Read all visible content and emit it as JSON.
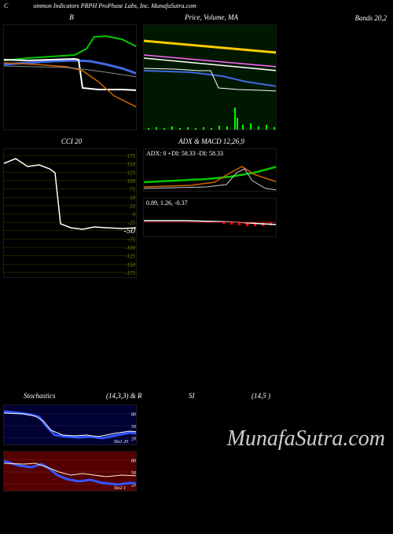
{
  "header": {
    "left": "C",
    "text": "ommon Indicators PRPH ProPhase  Labs, Inc. MunafaSutra.com"
  },
  "bands_label": "Bands 20,2",
  "watermark": "MunafaSutra.com",
  "panel_b": {
    "title": "B",
    "width": 170,
    "height": 135,
    "lines": {
      "green": {
        "color": "#00c800",
        "width": 2,
        "pts": [
          [
            0,
            45
          ],
          [
            30,
            42
          ],
          [
            60,
            40
          ],
          [
            90,
            38
          ],
          [
            105,
            30
          ],
          [
            115,
            15
          ],
          [
            130,
            14
          ],
          [
            150,
            18
          ],
          [
            170,
            28
          ]
        ]
      },
      "blue": {
        "color": "#4169e1",
        "width": 3,
        "pts": [
          [
            0,
            50
          ],
          [
            30,
            48
          ],
          [
            60,
            46
          ],
          [
            90,
            45
          ],
          [
            110,
            46
          ],
          [
            130,
            50
          ],
          [
            150,
            55
          ],
          [
            170,
            62
          ]
        ]
      },
      "white": {
        "color": "#ffffff",
        "width": 2,
        "pts": [
          [
            0,
            44
          ],
          [
            30,
            45
          ],
          [
            60,
            44
          ],
          [
            90,
            43
          ],
          [
            95,
            44
          ],
          [
            100,
            80
          ],
          [
            120,
            82
          ],
          [
            150,
            82
          ],
          [
            170,
            83
          ]
        ]
      },
      "orange": {
        "color": "#cc6600",
        "width": 1.5,
        "pts": [
          [
            0,
            48
          ],
          [
            40,
            50
          ],
          [
            80,
            53
          ],
          [
            100,
            58
          ],
          [
            120,
            72
          ],
          [
            140,
            90
          ],
          [
            170,
            105
          ]
        ]
      },
      "gray": {
        "color": "#888888",
        "width": 1,
        "pts": [
          [
            0,
            52
          ],
          [
            40,
            53
          ],
          [
            80,
            54
          ],
          [
            100,
            56
          ],
          [
            130,
            60
          ],
          [
            170,
            66
          ]
        ]
      }
    }
  },
  "panel_price": {
    "title": "Price, Volume, MA",
    "width": 170,
    "height": 135,
    "bg": "#001800",
    "lines": {
      "yellow": {
        "color": "#ffcc00",
        "width": 3,
        "pts": [
          [
            0,
            20
          ],
          [
            170,
            35
          ]
        ]
      },
      "magenta": {
        "color": "#ff66ff",
        "width": 1.5,
        "pts": [
          [
            0,
            38
          ],
          [
            170,
            53
          ]
        ]
      },
      "white": {
        "color": "#ffffff",
        "width": 1.5,
        "pts": [
          [
            0,
            42
          ],
          [
            170,
            58
          ]
        ]
      },
      "blue": {
        "color": "#4169e1",
        "width": 2,
        "pts": [
          [
            0,
            58
          ],
          [
            60,
            60
          ],
          [
            100,
            65
          ],
          [
            130,
            72
          ],
          [
            170,
            78
          ]
        ]
      },
      "thin": {
        "color": "#ffffff",
        "width": 1,
        "pts": [
          [
            0,
            55
          ],
          [
            40,
            56
          ],
          [
            70,
            58
          ],
          [
            85,
            58
          ],
          [
            95,
            80
          ],
          [
            120,
            82
          ],
          [
            150,
            83
          ],
          [
            170,
            84
          ]
        ]
      }
    },
    "volume_bars": {
      "color": "#00ff00",
      "bars": [
        [
          5,
          2
        ],
        [
          15,
          3
        ],
        [
          25,
          2
        ],
        [
          35,
          4
        ],
        [
          45,
          2
        ],
        [
          55,
          3
        ],
        [
          65,
          2
        ],
        [
          75,
          3
        ],
        [
          85,
          2
        ],
        [
          95,
          5
        ],
        [
          105,
          4
        ],
        [
          115,
          28
        ],
        [
          118,
          15
        ],
        [
          125,
          6
        ],
        [
          135,
          8
        ],
        [
          145,
          4
        ],
        [
          155,
          6
        ],
        [
          165,
          3
        ]
      ]
    }
  },
  "panel_cci": {
    "title": "CCI 20",
    "width": 170,
    "height": 165,
    "grid_color": "#404000",
    "ticks": [
      175,
      150,
      125,
      100,
      75,
      50,
      25,
      0,
      -25,
      -50,
      -75,
      -100,
      -125,
      -150,
      -175
    ],
    "highlight_tick": -50,
    "line": {
      "color": "#ffffff",
      "width": 1.5,
      "pts": [
        [
          0,
          18
        ],
        [
          15,
          12
        ],
        [
          30,
          22
        ],
        [
          45,
          20
        ],
        [
          58,
          25
        ],
        [
          65,
          30
        ],
        [
          72,
          95
        ],
        [
          85,
          100
        ],
        [
          100,
          102
        ],
        [
          115,
          99
        ],
        [
          130,
          100
        ],
        [
          150,
          101
        ],
        [
          170,
          100
        ]
      ]
    }
  },
  "panel_adx": {
    "title": "ADX  & MACD 12,26,9",
    "width": 170,
    "adx": {
      "height": 55,
      "label": "ADX: 0   +DI: 58.33 -DI: 58.33",
      "lines": {
        "green": {
          "color": "#00c800",
          "width": 2.5,
          "pts": [
            [
              0,
              42
            ],
            [
              40,
              40
            ],
            [
              80,
              38
            ],
            [
              110,
              35
            ],
            [
              140,
              30
            ],
            [
              170,
              22
            ]
          ]
        },
        "orange": {
          "color": "#cc6600",
          "width": 1.5,
          "pts": [
            [
              0,
              48
            ],
            [
              60,
              46
            ],
            [
              90,
              42
            ],
            [
              110,
              30
            ],
            [
              125,
              22
            ],
            [
              140,
              32
            ],
            [
              170,
              42
            ]
          ]
        },
        "white": {
          "color": "#cccccc",
          "width": 1,
          "pts": [
            [
              0,
              50
            ],
            [
              80,
              48
            ],
            [
              105,
              45
            ],
            [
              118,
              30
            ],
            [
              128,
              25
            ],
            [
              138,
              40
            ],
            [
              155,
              50
            ],
            [
              170,
              52
            ]
          ]
        }
      }
    },
    "macd": {
      "height": 50,
      "label": "0.89,  1.26,  -0.37",
      "mid": 30,
      "lines": {
        "white": {
          "color": "#ffffff",
          "width": 1.5,
          "pts": [
            [
              0,
              28
            ],
            [
              50,
              28
            ],
            [
              90,
              29
            ],
            [
              120,
              30
            ],
            [
              150,
              32
            ],
            [
              170,
              33
            ]
          ]
        },
        "red": {
          "color": "#aa0000",
          "width": 1,
          "pts": [
            [
              0,
              30
            ],
            [
              170,
              30
            ]
          ]
        }
      },
      "hist": {
        "color": "#ff0000",
        "bars": [
          [
            100,
            2
          ],
          [
            110,
            3
          ],
          [
            120,
            4
          ],
          [
            130,
            5
          ],
          [
            140,
            5
          ],
          [
            150,
            5
          ],
          [
            160,
            4
          ],
          [
            168,
            4
          ]
        ]
      }
    }
  },
  "panel_stoch": {
    "title_left": "Stochastics",
    "title_mid": "(14,3,3) & R",
    "title_si": "SI",
    "title_right": "(14,5                                   )",
    "width": 170,
    "top": {
      "height": 52,
      "bg": "#000033",
      "ticks": [
        80,
        50,
        20
      ],
      "indicator_label": "Sto1 20",
      "lines": {
        "blue": {
          "color": "#3355ff",
          "width": 3,
          "pts": [
            [
              0,
              8
            ],
            [
              20,
              10
            ],
            [
              35,
              12
            ],
            [
              45,
              15
            ],
            [
              55,
              28
            ],
            [
              65,
              38
            ],
            [
              80,
              40
            ],
            [
              95,
              41
            ],
            [
              110,
              40
            ],
            [
              125,
              42
            ],
            [
              145,
              38
            ],
            [
              160,
              35
            ],
            [
              170,
              36
            ]
          ]
        },
        "white": {
          "color": "#ffffff",
          "width": 1,
          "pts": [
            [
              0,
              10
            ],
            [
              25,
              11
            ],
            [
              40,
              14
            ],
            [
              50,
              20
            ],
            [
              60,
              32
            ],
            [
              75,
              38
            ],
            [
              90,
              39
            ],
            [
              105,
              38
            ],
            [
              120,
              40
            ],
            [
              140,
              36
            ],
            [
              160,
              33
            ],
            [
              170,
              34
            ]
          ]
        }
      }
    },
    "bot": {
      "height": 52,
      "bg": "#550000",
      "ticks": [
        80,
        50,
        20
      ],
      "indicator_label": "Sto2 1",
      "lines": {
        "blue": {
          "color": "#3355ff",
          "width": 3,
          "pts": [
            [
              0,
              12
            ],
            [
              20,
              18
            ],
            [
              35,
              20
            ],
            [
              48,
              16
            ],
            [
              58,
              22
            ],
            [
              68,
              30
            ],
            [
              80,
              35
            ],
            [
              95,
              38
            ],
            [
              110,
              36
            ],
            [
              125,
              40
            ],
            [
              145,
              42
            ],
            [
              160,
              40
            ],
            [
              170,
              41
            ]
          ]
        },
        "white": {
          "color": "#ffeecc",
          "width": 1,
          "pts": [
            [
              0,
              15
            ],
            [
              25,
              16
            ],
            [
              40,
              15
            ],
            [
              55,
              20
            ],
            [
              70,
              26
            ],
            [
              85,
              30
            ],
            [
              100,
              28
            ],
            [
              115,
              30
            ],
            [
              130,
              32
            ],
            [
              150,
              30
            ],
            [
              170,
              31
            ]
          ]
        }
      }
    }
  }
}
